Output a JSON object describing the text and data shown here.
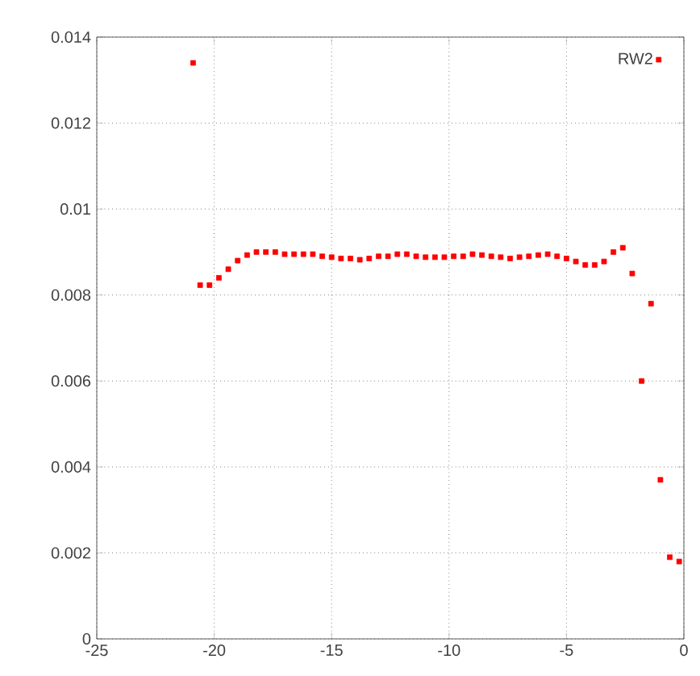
{
  "chart_data": {
    "type": "scatter",
    "xlim": [
      -25,
      0
    ],
    "ylim": [
      0,
      0.014
    ],
    "xticks": [
      -25,
      -20,
      -15,
      -10,
      -5,
      0
    ],
    "yticks": [
      0,
      0.002,
      0.004,
      0.006,
      0.008,
      0.01,
      0.012,
      0.014
    ],
    "grid": true,
    "legend": "top right",
    "marker": "square",
    "series": [
      {
        "name": "RW2",
        "color": "#ff0000",
        "x": [
          -20.9,
          -20.6,
          -20.2,
          -19.8,
          -19.4,
          -19.0,
          -18.6,
          -18.2,
          -17.8,
          -17.4,
          -17.0,
          -16.6,
          -16.2,
          -15.8,
          -15.4,
          -15.0,
          -14.6,
          -14.2,
          -13.8,
          -13.4,
          -13.0,
          -12.6,
          -12.2,
          -11.8,
          -11.4,
          -11.0,
          -10.6,
          -10.2,
          -9.8,
          -9.4,
          -9.0,
          -8.6,
          -8.2,
          -7.8,
          -7.4,
          -7.0,
          -6.6,
          -6.2,
          -5.8,
          -5.4,
          -5.0,
          -4.6,
          -4.2,
          -3.8,
          -3.4,
          -3.0,
          -2.6,
          -2.2,
          -1.8,
          -1.4,
          -1.0,
          -0.6,
          -0.2
        ],
        "values": [
          0.0134,
          0.00823,
          0.00823,
          0.0084,
          0.0086,
          0.0088,
          0.00893,
          0.009,
          0.009,
          0.009,
          0.00895,
          0.00895,
          0.00895,
          0.00895,
          0.0089,
          0.00888,
          0.00885,
          0.00885,
          0.00882,
          0.00885,
          0.0089,
          0.0089,
          0.00895,
          0.00895,
          0.0089,
          0.00888,
          0.00888,
          0.00888,
          0.0089,
          0.0089,
          0.00895,
          0.00893,
          0.0089,
          0.00888,
          0.00885,
          0.00888,
          0.0089,
          0.00893,
          0.00895,
          0.0089,
          0.00885,
          0.00878,
          0.0087,
          0.0087,
          0.00878,
          0.009,
          0.0091,
          0.0085,
          0.006,
          0.0078,
          0.0037,
          0.0019,
          0.0018
        ]
      }
    ]
  }
}
